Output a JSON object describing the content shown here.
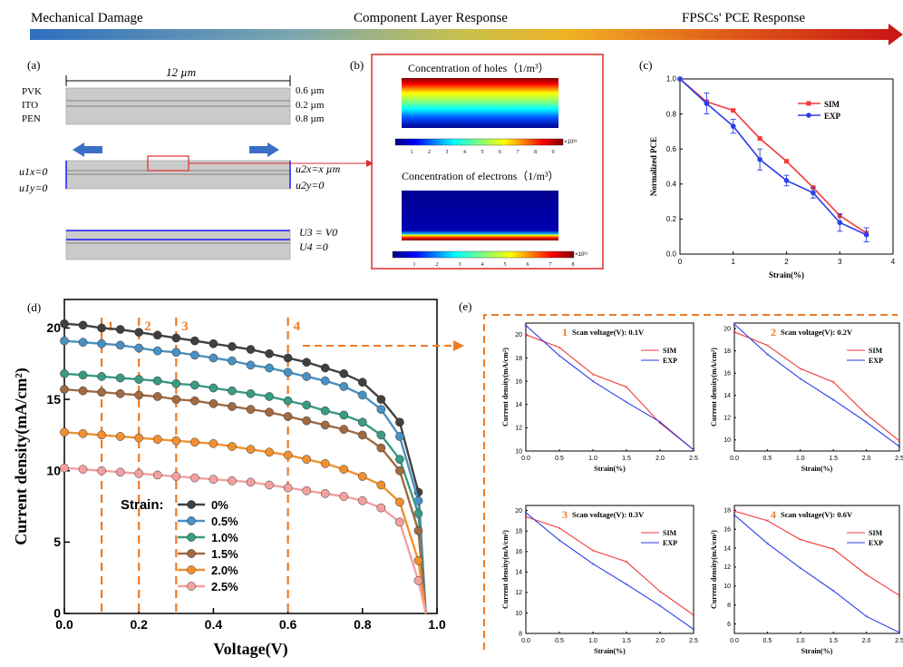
{
  "colors": {
    "gradient": [
      "#2f6fbf",
      "#7aa6b0",
      "#c8c04a",
      "#f0b020",
      "#e05a18",
      "#c81414"
    ],
    "sim": "#f23a3a",
    "exp": "#2a3ee8",
    "dashed": "#ee7b26",
    "panel_border": "#e02a2a",
    "arrow_blue": "#3a6fc6",
    "layer_gray": "#cbcbcb",
    "electrode_blue": "#1a1aff"
  },
  "banner": {
    "left": "Mechanical Damage",
    "center": "Component  Layer Response",
    "right": "FPSCs' PCE Response"
  },
  "panel_a": {
    "label": "(a)",
    "width_label": "12 µm",
    "layers": [
      "PVK",
      "ITO",
      "PEN"
    ],
    "thickness": [
      "0.6 µm",
      "0.2 µm",
      "0.8 µm"
    ],
    "bc_left": [
      "u1x=0",
      "u1y=0"
    ],
    "bc_right": [
      "u2x=x µm",
      "u2y=0"
    ],
    "electrical": [
      "U3 = V0",
      "U4 =0"
    ]
  },
  "panel_b": {
    "label": "(b)",
    "holes_title": "Concentration of holes（1/m³）",
    "holes_ticks": [
      "1",
      "2",
      "3",
      "4",
      "5",
      "6",
      "7",
      "8",
      "9"
    ],
    "holes_exp": "×10²³",
    "electrons_title": "Concentration of electrons（1/m³）",
    "electrons_ticks": [
      "1",
      "2",
      "3",
      "4",
      "5",
      "6",
      "7",
      "8"
    ],
    "electrons_exp": "×10²¹"
  },
  "chart_data": [
    {
      "id": "c",
      "panel": "(c)",
      "type": "line",
      "xlabel": "Strain(%)",
      "ylabel": "Normalized PCE",
      "xlim": [
        0,
        4
      ],
      "ylim": [
        0,
        1.0
      ],
      "xticks": [
        "0",
        "1",
        "2",
        "3",
        "4"
      ],
      "yticks": [
        "0.0",
        "0.2",
        "0.4",
        "0.6",
        "0.8",
        "1.0"
      ],
      "x": [
        0,
        0.5,
        1.0,
        1.5,
        2.0,
        2.5,
        3.0,
        3.5
      ],
      "series": [
        {
          "name": "SIM",
          "values": [
            1.0,
            0.87,
            0.82,
            0.66,
            0.53,
            0.38,
            0.22,
            0.12
          ]
        },
        {
          "name": "EXP",
          "values": [
            1.0,
            0.86,
            0.73,
            0.54,
            0.42,
            0.35,
            0.18,
            0.11
          ],
          "errors": [
            0,
            0.06,
            0.04,
            0.06,
            0.03,
            0.03,
            0.05,
            0.04
          ]
        }
      ],
      "legend": "top-right"
    },
    {
      "id": "d",
      "panel": "(d)",
      "type": "line",
      "xlabel": "Voltage(V)",
      "ylabel": "Current density(mA/cm²)",
      "xlim": [
        0,
        1.0
      ],
      "ylim": [
        0,
        22
      ],
      "xticks": [
        "0.0",
        "0.2",
        "0.4",
        "0.6",
        "0.8",
        "1.0"
      ],
      "yticks": [
        "0",
        "5",
        "10",
        "15",
        "20"
      ],
      "x": [
        0,
        0.05,
        0.1,
        0.15,
        0.2,
        0.25,
        0.3,
        0.35,
        0.4,
        0.45,
        0.5,
        0.55,
        0.6,
        0.65,
        0.7,
        0.75,
        0.8,
        0.85,
        0.9,
        0.95
      ],
      "legend_title": "Strain:",
      "series": [
        {
          "name": "0%",
          "color": "#404040",
          "values": [
            20.3,
            20.2,
            20.0,
            19.9,
            19.7,
            19.5,
            19.3,
            19.1,
            18.9,
            18.7,
            18.5,
            18.2,
            17.9,
            17.6,
            17.2,
            16.8,
            16.2,
            15.0,
            13.4,
            8.5
          ]
        },
        {
          "name": "0.5%",
          "color": "#4a90c0",
          "values": [
            19.1,
            19.0,
            18.9,
            18.8,
            18.6,
            18.4,
            18.3,
            18.1,
            17.9,
            17.7,
            17.4,
            17.2,
            16.9,
            16.6,
            16.3,
            15.9,
            15.3,
            14.3,
            12.4,
            7.9
          ]
        },
        {
          "name": "1.0%",
          "color": "#3a9a82",
          "values": [
            16.8,
            16.7,
            16.6,
            16.5,
            16.4,
            16.3,
            16.1,
            16.0,
            15.8,
            15.6,
            15.4,
            15.2,
            14.9,
            14.6,
            14.2,
            13.9,
            13.4,
            12.5,
            10.8,
            7.0
          ]
        },
        {
          "name": "1.5%",
          "color": "#a06a42",
          "values": [
            15.7,
            15.6,
            15.5,
            15.4,
            15.3,
            15.2,
            15.0,
            14.9,
            14.7,
            14.5,
            14.3,
            14.1,
            13.8,
            13.5,
            13.2,
            12.9,
            12.5,
            11.6,
            10.0,
            5.8
          ]
        },
        {
          "name": "2.0%",
          "color": "#f09030",
          "values": [
            12.7,
            12.6,
            12.5,
            12.4,
            12.3,
            12.2,
            12.1,
            12.0,
            11.9,
            11.7,
            11.5,
            11.3,
            11.1,
            10.8,
            10.5,
            10.1,
            9.6,
            9.0,
            7.8,
            3.7
          ]
        },
        {
          "name": "2.5%",
          "color": "#f4a0a0",
          "values": [
            10.2,
            10.1,
            10.0,
            9.9,
            9.8,
            9.7,
            9.6,
            9.5,
            9.4,
            9.3,
            9.2,
            9.0,
            8.8,
            8.6,
            8.4,
            8.2,
            7.9,
            7.4,
            6.4,
            2.3
          ]
        }
      ],
      "vlines": [
        {
          "label": "1",
          "x": 0.1
        },
        {
          "label": "2",
          "x": 0.2
        },
        {
          "label": "3",
          "x": 0.3
        },
        {
          "label": "4",
          "x": 0.6
        }
      ]
    },
    {
      "id": "e1",
      "panel": "(e)",
      "type": "line",
      "num": "1",
      "title": "Scan voltage(V): 0.1V",
      "xlabel": "Strain(%)",
      "ylabel": "Current density(mA/cm²)",
      "xlim": [
        0,
        2.5
      ],
      "ylim": [
        10,
        21
      ],
      "xticks": [
        "0.0",
        "0.5",
        "1.0",
        "1.5",
        "2.0",
        "2.5"
      ],
      "yticks": [
        "10",
        "12",
        "14",
        "16",
        "18",
        "20"
      ],
      "x": [
        0,
        0.5,
        1.0,
        1.5,
        2.0,
        2.5
      ],
      "series": [
        {
          "name": "SIM",
          "values": [
            20.0,
            18.9,
            16.6,
            15.5,
            12.4,
            10.1
          ]
        },
        {
          "name": "EXP",
          "values": [
            20.8,
            18.2,
            16.0,
            14.2,
            12.5,
            10.1
          ]
        }
      ]
    },
    {
      "id": "e2",
      "panel": "",
      "type": "line",
      "num": "2",
      "title": "Scan voltage(V): 0.2V",
      "xlabel": "Strain(%)",
      "ylabel": "Current density(mA/cm²)",
      "xlim": [
        0,
        2.5
      ],
      "ylim": [
        9,
        20.5
      ],
      "xticks": [
        "0.0",
        "0.5",
        "1.0",
        "1.5",
        "2.0",
        "2.5"
      ],
      "yticks": [
        "10",
        "12",
        "14",
        "16",
        "18",
        "20"
      ],
      "x": [
        0,
        0.5,
        1.0,
        1.5,
        2.0,
        2.5
      ],
      "series": [
        {
          "name": "SIM",
          "values": [
            19.7,
            18.5,
            16.4,
            15.2,
            12.3,
            9.9
          ]
        },
        {
          "name": "EXP",
          "values": [
            20.4,
            17.7,
            15.5,
            13.6,
            11.6,
            9.4
          ]
        }
      ]
    },
    {
      "id": "e3",
      "panel": "",
      "type": "line",
      "num": "3",
      "title": "Scan voltage(V): 0.3V",
      "xlabel": "Strain(%)",
      "ylabel": "Current density(mA/cm²)",
      "xlim": [
        0,
        2.5
      ],
      "ylim": [
        8,
        20.5
      ],
      "xticks": [
        "0.0",
        "0.5",
        "1.0",
        "1.5",
        "2.0",
        "2.5"
      ],
      "yticks": [
        "8",
        "10",
        "12",
        "14",
        "16",
        "18",
        "20"
      ],
      "x": [
        0,
        0.5,
        1.0,
        1.5,
        2.0,
        2.5
      ],
      "series": [
        {
          "name": "SIM",
          "values": [
            19.4,
            18.3,
            16.1,
            15.0,
            12.1,
            9.8
          ]
        },
        {
          "name": "EXP",
          "values": [
            19.8,
            17.1,
            14.8,
            12.8,
            10.7,
            8.4
          ]
        }
      ]
    },
    {
      "id": "e4",
      "panel": "",
      "type": "line",
      "num": "4",
      "title": "Scan voltage(V): 0.6V",
      "xlabel": "Strain(%)",
      "ylabel": "Current density(mA/cm²)",
      "xlim": [
        0,
        2.5
      ],
      "ylim": [
        5,
        18.5
      ],
      "xticks": [
        "0.0",
        "0.5",
        "1.0",
        "1.5",
        "2.0",
        "2.5"
      ],
      "yticks": [
        "6",
        "8",
        "10",
        "12",
        "14",
        "16",
        "18"
      ],
      "x": [
        0,
        0.5,
        1.0,
        1.5,
        2.0,
        2.5
      ],
      "series": [
        {
          "name": "SIM",
          "values": [
            17.9,
            16.9,
            14.9,
            13.9,
            11.2,
            9.0
          ]
        },
        {
          "name": "EXP",
          "values": [
            17.5,
            14.5,
            11.9,
            9.5,
            6.8,
            5.1
          ]
        }
      ]
    }
  ]
}
